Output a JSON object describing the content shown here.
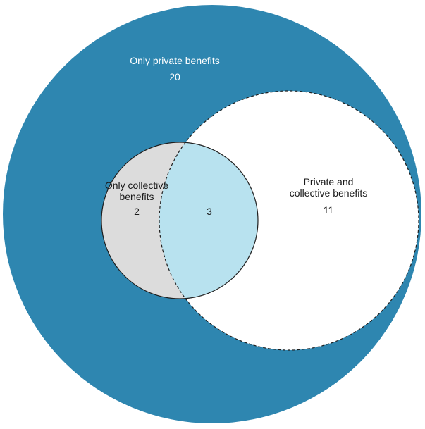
{
  "regions": {
    "only_private": {
      "label": "Only private benefits",
      "count": "20",
      "color": "#2e86b0"
    },
    "only_collective": {
      "label_line1": "Only collective",
      "label_line2": "benefits",
      "count": "2",
      "color": "#dcdcdc"
    },
    "overlap": {
      "count": "3",
      "color": "#b8e2ef"
    },
    "private_and_collective": {
      "label_line1": "Private and",
      "label_line2": "collective benefits",
      "count": "11",
      "color": "#ffffff"
    }
  },
  "colors": {
    "outline": "#1f1f1f"
  }
}
